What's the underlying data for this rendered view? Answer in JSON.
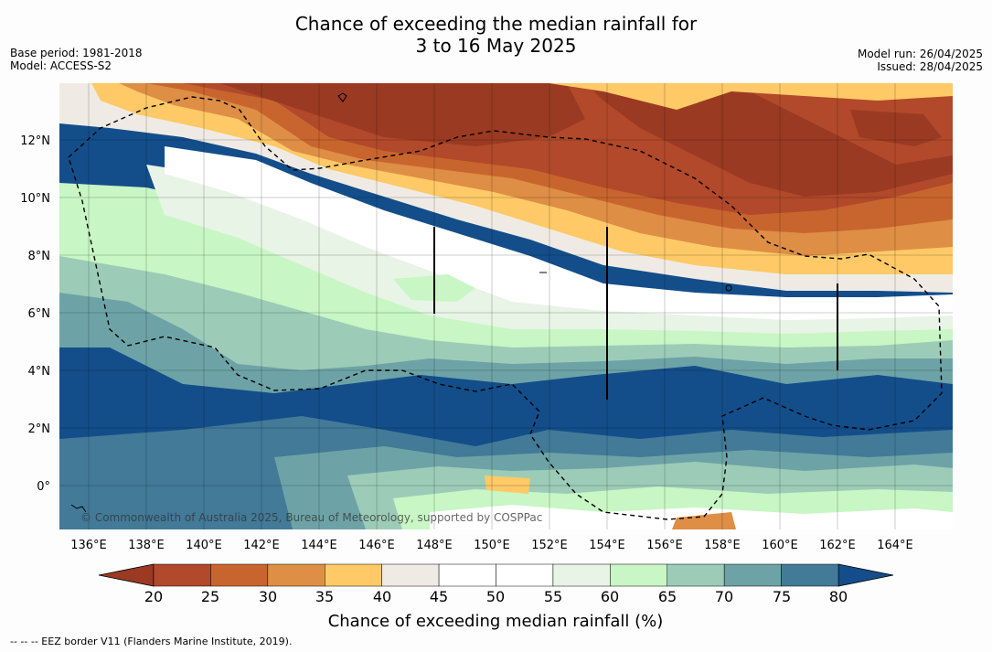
{
  "title": {
    "line1": "Chance of exceeding the median rainfall for",
    "line2": "3 to 16 May 2025"
  },
  "meta_left": {
    "base_period": "Base period: 1981-2018",
    "model": "Model: ACCESS-S2"
  },
  "meta_right": {
    "model_run": "Model run: 26/04/2025",
    "issued": "Issued: 28/04/2025"
  },
  "map": {
    "lat_labels": [
      "12°N",
      "10°N",
      "8°N",
      "6°N",
      "4°N",
      "2°N",
      "0°"
    ],
    "lon_labels": [
      "136°E",
      "138°E",
      "140°E",
      "142°E",
      "144°E",
      "146°E",
      "148°E",
      "150°E",
      "152°E",
      "154°E",
      "156°E",
      "158°E",
      "160°E",
      "162°E",
      "164°E"
    ],
    "copyright": "© Commonwealth of Australia 2025, Bureau of Meteorology, supported by COSPPac"
  },
  "colorbar": {
    "title": "Chance of exceeding median rainfall (%)",
    "ticks": [
      "20",
      "25",
      "30",
      "35",
      "40",
      "45",
      "50",
      "55",
      "60",
      "65",
      "70",
      "75",
      "80"
    ],
    "colors": [
      "#9a3a22",
      "#b1492a",
      "#c8652f",
      "#de8e45",
      "#fec966",
      "#efebe4",
      "#ffffff",
      "#ffffff",
      "#e8f4e6",
      "#c8f6c4",
      "#9cccb8",
      "#6da3a6",
      "#427a98",
      "#134e8a"
    ]
  },
  "footnote": "--  --  -- EEZ border V11 (Flanders Marine Institute, 2019)."
}
